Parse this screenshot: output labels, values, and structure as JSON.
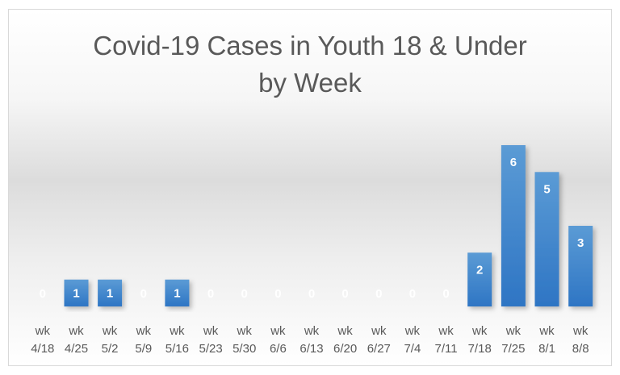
{
  "chart_data": {
    "type": "bar",
    "title_lines": [
      "Covid-19 Cases in Youth 18 & Under",
      "by Week"
    ],
    "categories": [
      [
        "wk",
        "4/18"
      ],
      [
        "wk",
        "4/25"
      ],
      [
        "wk",
        "5/2"
      ],
      [
        "wk",
        "5/9"
      ],
      [
        "wk",
        "5/16"
      ],
      [
        "wk",
        "5/23"
      ],
      [
        "wk",
        "5/30"
      ],
      [
        "wk",
        "6/6"
      ],
      [
        "wk",
        "6/13"
      ],
      [
        "wk",
        "6/20"
      ],
      [
        "wk",
        "6/27"
      ],
      [
        "wk",
        "7/4"
      ],
      [
        "wk",
        "7/11"
      ],
      [
        "wk",
        "7/18"
      ],
      [
        "wk",
        "7/25"
      ],
      [
        "wk",
        "8/1"
      ],
      [
        "wk",
        "8/8"
      ]
    ],
    "values": [
      0,
      1,
      1,
      0,
      1,
      0,
      0,
      0,
      0,
      0,
      0,
      0,
      0,
      2,
      6,
      5,
      3
    ],
    "ylim": [
      0,
      6
    ],
    "grid": false,
    "legend": "none",
    "bar_color": "#2e75c4",
    "bar_color_light": "#5b9bd5",
    "zero_label_color": "#ffffff"
  }
}
